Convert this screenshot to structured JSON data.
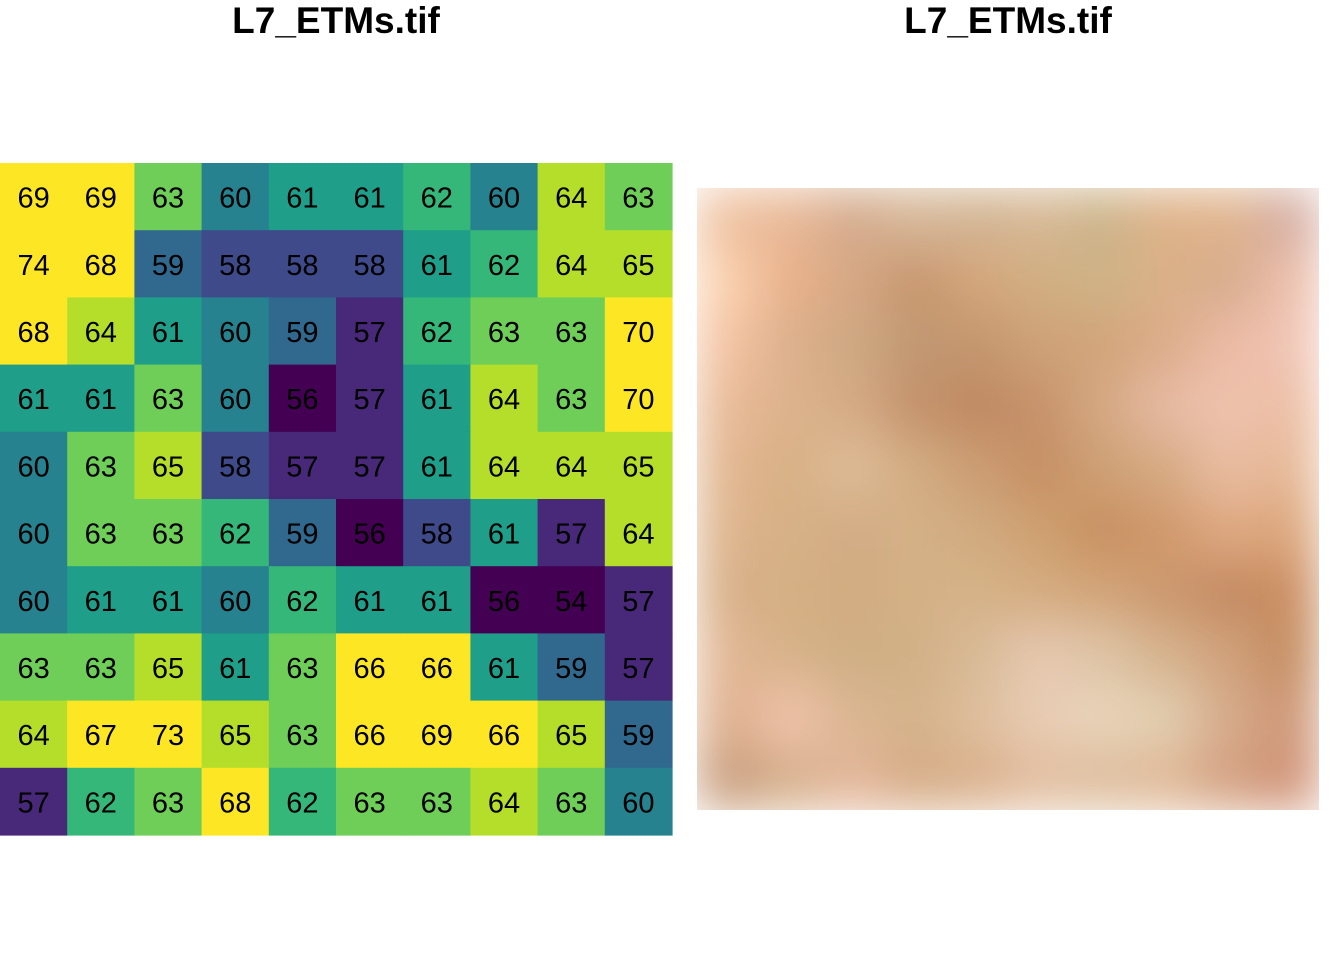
{
  "chart_data": [
    {
      "type": "heatmap",
      "title": "L7_ETMs.tif",
      "nrows": 10,
      "ncols": 10,
      "values": [
        [
          69,
          69,
          63,
          60,
          61,
          61,
          62,
          60,
          64,
          63
        ],
        [
          74,
          68,
          59,
          58,
          58,
          58,
          61,
          62,
          64,
          65
        ],
        [
          68,
          64,
          61,
          60,
          59,
          57,
          62,
          63,
          63,
          70
        ],
        [
          61,
          61,
          63,
          60,
          56,
          57,
          61,
          64,
          63,
          70
        ],
        [
          60,
          63,
          65,
          58,
          57,
          57,
          61,
          64,
          64,
          65
        ],
        [
          60,
          63,
          63,
          62,
          59,
          56,
          58,
          61,
          57,
          64
        ],
        [
          60,
          61,
          61,
          60,
          62,
          61,
          61,
          56,
          54,
          57
        ],
        [
          63,
          63,
          65,
          61,
          63,
          66,
          66,
          61,
          59,
          57
        ],
        [
          64,
          67,
          73,
          65,
          63,
          66,
          69,
          66,
          65,
          59
        ],
        [
          57,
          62,
          63,
          68,
          62,
          63,
          63,
          64,
          63,
          60
        ]
      ],
      "color_scale": "viridis",
      "palette": [
        "#440154",
        "#482878",
        "#3e4a89",
        "#31688e",
        "#26828e",
        "#1f9e89",
        "#35b779",
        "#6ece58",
        "#b5de2b",
        "#fde725"
      ],
      "class_breaks": [
        56,
        57,
        58,
        59,
        60,
        61,
        62,
        63,
        64,
        66,
        68
      ],
      "cell_labels": true,
      "legend": "none",
      "axes": "none"
    },
    {
      "type": "heatmap",
      "title": "L7_ETMs.tif",
      "render": "rgb-composite",
      "nrows": 10,
      "ncols": 10,
      "rgb": [
        [
          [
            238,
            192,
            158
          ],
          [
            232,
            184,
            150
          ],
          [
            212,
            170,
            140
          ],
          [
            214,
            182,
            150
          ],
          [
            210,
            180,
            146
          ],
          [
            214,
            184,
            148
          ],
          [
            204,
            180,
            138
          ],
          [
            222,
            178,
            136
          ],
          [
            224,
            180,
            140
          ],
          [
            212,
            172,
            160
          ]
        ],
        [
          [
            250,
            208,
            174
          ],
          [
            232,
            176,
            138
          ],
          [
            214,
            168,
            132
          ],
          [
            200,
            150,
            110
          ],
          [
            212,
            166,
            124
          ],
          [
            210,
            174,
            130
          ],
          [
            206,
            178,
            134
          ],
          [
            218,
            176,
            136
          ],
          [
            214,
            172,
            140
          ],
          [
            236,
            190,
            170
          ]
        ],
        [
          [
            244,
            194,
            162
          ],
          [
            220,
            176,
            140
          ],
          [
            206,
            168,
            130
          ],
          [
            192,
            152,
            114
          ],
          [
            196,
            150,
            110
          ],
          [
            206,
            162,
            120
          ],
          [
            210,
            164,
            122
          ],
          [
            220,
            172,
            136
          ],
          [
            236,
            186,
            164
          ],
          [
            240,
            196,
            180
          ]
        ],
        [
          [
            232,
            186,
            150
          ],
          [
            220,
            178,
            140
          ],
          [
            212,
            170,
            132
          ],
          [
            196,
            146,
            108
          ],
          [
            190,
            136,
            98
          ],
          [
            198,
            146,
            106
          ],
          [
            212,
            168,
            130
          ],
          [
            230,
            186,
            162
          ],
          [
            238,
            194,
            174
          ],
          [
            236,
            190,
            164
          ]
        ],
        [
          [
            226,
            182,
            144
          ],
          [
            216,
            176,
            134
          ],
          [
            222,
            188,
            150
          ],
          [
            210,
            172,
            130
          ],
          [
            204,
            156,
            114
          ],
          [
            198,
            142,
            100
          ],
          [
            206,
            160,
            116
          ],
          [
            214,
            170,
            130
          ],
          [
            232,
            188,
            160
          ],
          [
            230,
            184,
            150
          ]
        ],
        [
          [
            222,
            180,
            140
          ],
          [
            214,
            176,
            134
          ],
          [
            210,
            172,
            132
          ],
          [
            212,
            176,
            136
          ],
          [
            208,
            170,
            128
          ],
          [
            206,
            160,
            112
          ],
          [
            200,
            144,
            96
          ],
          [
            208,
            152,
            108
          ],
          [
            222,
            168,
            128
          ],
          [
            220,
            166,
            124
          ]
        ],
        [
          [
            216,
            176,
            136
          ],
          [
            212,
            174,
            132
          ],
          [
            210,
            172,
            130
          ],
          [
            212,
            176,
            134
          ],
          [
            214,
            178,
            136
          ],
          [
            212,
            172,
            128
          ],
          [
            210,
            164,
            120
          ],
          [
            204,
            152,
            110
          ],
          [
            196,
            138,
            98
          ],
          [
            202,
            140,
            96
          ]
        ],
        [
          [
            226,
            182,
            148
          ],
          [
            214,
            178,
            136
          ],
          [
            208,
            174,
            132
          ],
          [
            210,
            176,
            134
          ],
          [
            216,
            186,
            150
          ],
          [
            230,
            200,
            176
          ],
          [
            222,
            196,
            166
          ],
          [
            214,
            178,
            140
          ],
          [
            208,
            162,
            124
          ],
          [
            196,
            140,
            96
          ]
        ],
        [
          [
            222,
            176,
            142
          ],
          [
            240,
            194,
            170
          ],
          [
            218,
            182,
            146
          ],
          [
            212,
            178,
            138
          ],
          [
            222,
            190,
            156
          ],
          [
            232,
            204,
            180
          ],
          [
            232,
            212,
            186
          ],
          [
            226,
            206,
            176
          ],
          [
            214,
            172,
            140
          ],
          [
            206,
            150,
            118
          ]
        ],
        [
          [
            200,
            156,
            124
          ],
          [
            214,
            176,
            140
          ],
          [
            228,
            182,
            154
          ],
          [
            214,
            172,
            134
          ],
          [
            218,
            176,
            140
          ],
          [
            226,
            190,
            160
          ],
          [
            222,
            190,
            158
          ],
          [
            224,
            186,
            152
          ],
          [
            212,
            162,
            130
          ],
          [
            208,
            146,
            118
          ]
        ]
      ],
      "axes": "none"
    }
  ]
}
